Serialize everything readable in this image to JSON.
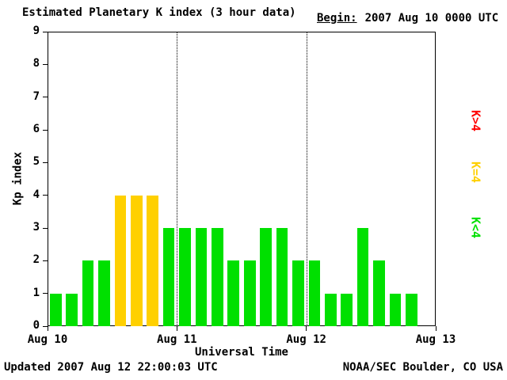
{
  "header": {
    "begin_label": "Begin:",
    "begin_value": "2007 Aug 10 0000 UTC"
  },
  "footer": {
    "updated": "Updated 2007 Aug 12 22:00:03 UTC",
    "source": "NOAA/SEC Boulder, CO USA"
  },
  "chart_data": {
    "type": "bar",
    "title": "Estimated Planetary K index (3 hour data)",
    "xlabel": "Universal Time",
    "ylabel": "Kp index",
    "ylim": [
      0,
      9
    ],
    "yticks": [
      0,
      1,
      2,
      3,
      4,
      5,
      6,
      7,
      8,
      9
    ],
    "x_tick_labels": [
      "Aug 10",
      "Aug 11",
      "Aug 12",
      "Aug 13"
    ],
    "x_total_hours": 72,
    "interval_hours": 3,
    "grid": "day-separators-dotted",
    "grid_lines_at_hours": [
      24,
      48
    ],
    "values": [
      1,
      1,
      2,
      2,
      4,
      4,
      4,
      3,
      3,
      3,
      3,
      2,
      2,
      3,
      3,
      2,
      2,
      1,
      1,
      3,
      2,
      1,
      1
    ],
    "colors": {
      "below4": "#00e000",
      "equal4": "#ffd000",
      "above4": "#ff0000"
    },
    "legend": [
      {
        "label": "K>4",
        "color": "#ff0000"
      },
      {
        "label": "K=4",
        "color": "#ffd000"
      },
      {
        "label": "K<4",
        "color": "#00e000"
      }
    ],
    "legend_position": "right-rotated"
  }
}
